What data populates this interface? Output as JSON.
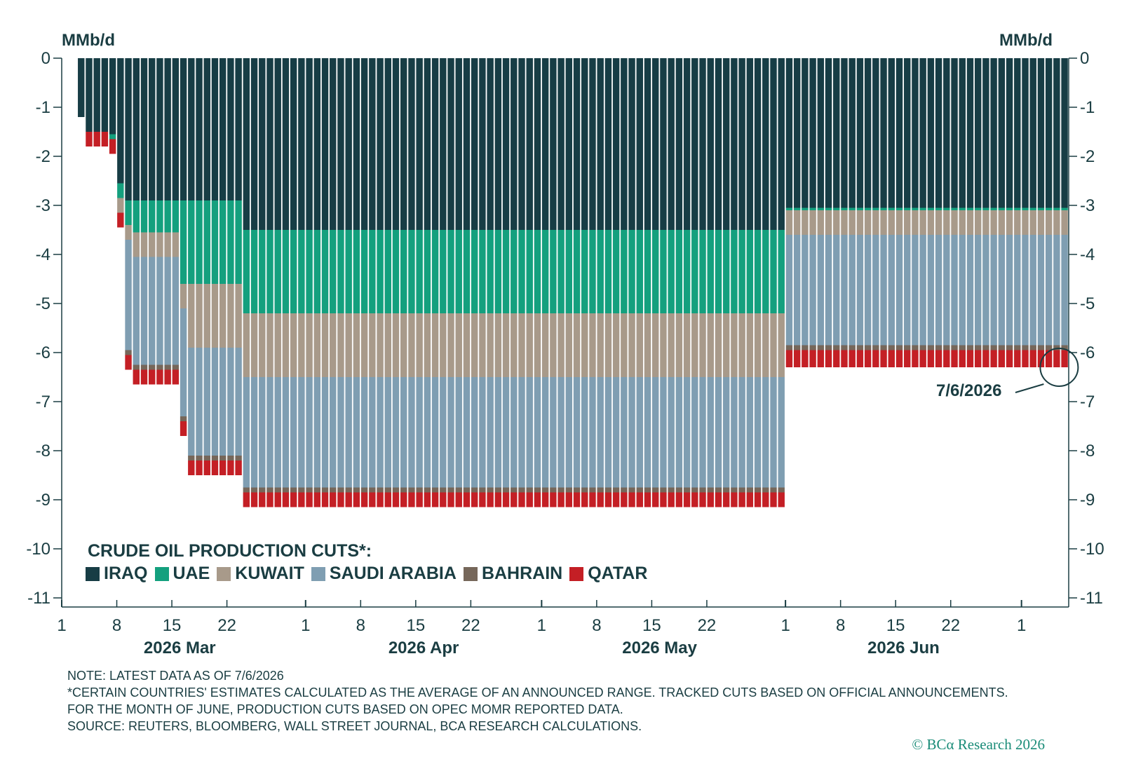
{
  "units": {
    "left": "MMb/d",
    "right": "MMb/d"
  },
  "legend_title": "CRUDE OIL PRODUCTION CUTS*:",
  "callout": "7/6/2026",
  "notes": [
    "NOTE: LATEST DATA AS OF 7/6/2026",
    "*CERTAIN COUNTRIES' ESTIMATES CALCULATED AS THE AVERAGE OF AN ANNOUNCED RANGE. TRACKED CUTS BASED ON OFFICIAL ANNOUNCEMENTS.",
    "FOR THE MONTH OF JUNE, PRODUCTION CUTS BASED ON OPEC MOMR REPORTED DATA.",
    "SOURCE: REUTERS, BLOOMBERG, WALL STREET JOURNAL, BCA RESEARCH CALCULATIONS."
  ],
  "copyright": "© BCα Research 2026",
  "chart_data": {
    "type": "bar",
    "stacked": true,
    "ylim": [
      -11,
      0
    ],
    "y_ticks": [
      0,
      -1,
      -2,
      -3,
      -4,
      -5,
      -6,
      -7,
      -8,
      -9,
      -10,
      -11
    ],
    "x_start": "2026-03-01",
    "x_end": "2026-07-06",
    "x_tick_labels": [
      {
        "date": "2026-03-01",
        "label": "1"
      },
      {
        "date": "2026-03-08",
        "label": "8"
      },
      {
        "date": "2026-03-15",
        "label": "15"
      },
      {
        "date": "2026-03-22",
        "label": "22"
      },
      {
        "date": "2026-04-01",
        "label": "1"
      },
      {
        "date": "2026-04-08",
        "label": "8"
      },
      {
        "date": "2026-04-15",
        "label": "15"
      },
      {
        "date": "2026-04-22",
        "label": "22"
      },
      {
        "date": "2026-05-01",
        "label": "1"
      },
      {
        "date": "2026-05-08",
        "label": "8"
      },
      {
        "date": "2026-05-15",
        "label": "15"
      },
      {
        "date": "2026-05-22",
        "label": "22"
      },
      {
        "date": "2026-06-01",
        "label": "1"
      },
      {
        "date": "2026-06-08",
        "label": "8"
      },
      {
        "date": "2026-06-15",
        "label": "15"
      },
      {
        "date": "2026-06-22",
        "label": "22"
      },
      {
        "date": "2026-07-01",
        "label": "1"
      }
    ],
    "month_labels": [
      {
        "date": "2026-03-16",
        "label": "2026 Mar"
      },
      {
        "date": "2026-04-16",
        "label": "2026 Apr"
      },
      {
        "date": "2026-05-16",
        "label": "2026 May"
      },
      {
        "date": "2026-06-16",
        "label": "2026 Jun"
      }
    ],
    "series": [
      {
        "name": "IRAQ",
        "color": "#173d45"
      },
      {
        "name": "UAE",
        "color": "#14a07e"
      },
      {
        "name": "KUWAIT",
        "color": "#a89a8a"
      },
      {
        "name": "SAUDI ARABIA",
        "color": "#7f9eb2"
      },
      {
        "name": "BAHRAIN",
        "color": "#76675a"
      },
      {
        "name": "QATAR",
        "color": "#c41f25"
      }
    ],
    "periods": [
      {
        "from": "2026-03-03",
        "to": "2026-03-03",
        "values": [
          -1.2,
          0,
          0,
          0,
          0,
          0
        ]
      },
      {
        "from": "2026-03-04",
        "to": "2026-03-06",
        "values": [
          -1.5,
          0,
          0,
          0,
          0,
          -0.3
        ]
      },
      {
        "from": "2026-03-07",
        "to": "2026-03-07",
        "values": [
          -1.55,
          -0.1,
          0,
          0,
          0,
          -0.3
        ]
      },
      {
        "from": "2026-03-08",
        "to": "2026-03-08",
        "values": [
          -2.55,
          -0.3,
          -0.3,
          0,
          0,
          -0.3
        ]
      },
      {
        "from": "2026-03-09",
        "to": "2026-03-09",
        "values": [
          -2.9,
          -0.5,
          -0.3,
          -2.25,
          -0.1,
          -0.3
        ]
      },
      {
        "from": "2026-03-10",
        "to": "2026-03-15",
        "values": [
          -2.9,
          -0.65,
          -0.5,
          -2.2,
          -0.1,
          -0.3
        ]
      },
      {
        "from": "2026-03-16",
        "to": "2026-03-16",
        "values": [
          -2.9,
          -1.7,
          -0.5,
          -2.2,
          -0.1,
          -0.3
        ]
      },
      {
        "from": "2026-03-17",
        "to": "2026-03-23",
        "values": [
          -2.9,
          -1.7,
          -1.3,
          -2.2,
          -0.1,
          -0.3
        ]
      },
      {
        "from": "2026-03-24",
        "to": "2026-05-31",
        "values": [
          -3.5,
          -1.7,
          -1.3,
          -2.25,
          -0.1,
          -0.3
        ]
      },
      {
        "from": "2026-06-01",
        "to": "2026-07-06",
        "values": [
          -3.05,
          -0.05,
          -0.5,
          -2.25,
          -0.1,
          -0.35
        ]
      }
    ]
  }
}
